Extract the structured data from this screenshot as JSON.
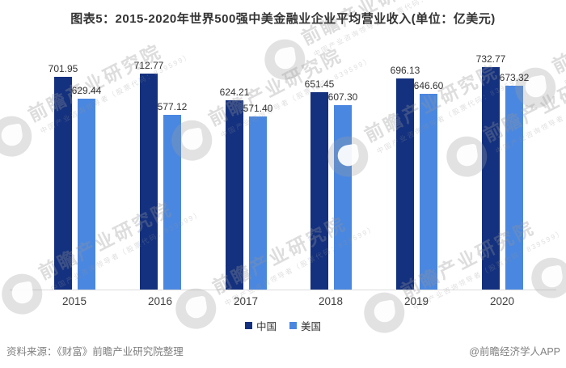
{
  "title": "图表5：2015-2020年世界500强中美金融业企业平均营业收入(单位：亿美元)",
  "chart_data": {
    "type": "bar",
    "categories": [
      "2015",
      "2016",
      "2017",
      "2018",
      "2019",
      "2020"
    ],
    "series": [
      {
        "name": "中国",
        "key": "china",
        "color": "#14317f",
        "values": [
          701.95,
          712.77,
          624.21,
          651.45,
          696.13,
          732.77
        ]
      },
      {
        "name": "美国",
        "key": "usa",
        "color": "#4a87e0",
        "values": [
          629.44,
          577.12,
          571.4,
          607.3,
          646.6,
          673.32
        ]
      }
    ],
    "unit": "亿美元",
    "ylim": [
      0,
      780
    ],
    "grid": false,
    "y_axis_visible": false,
    "value_labels": true,
    "value_label_decimals": 2,
    "legend_position": "bottom"
  },
  "footer": {
    "source": "资料来源：《财富》前瞻产业研究院整理",
    "credit": "@前瞻经济学人APP"
  },
  "watermark": {
    "text": "前瞻产业研究院",
    "subtext": "中国产业咨询领导者（股票代码：839599）"
  },
  "colors": {
    "axis_line": "#dcdcdc",
    "title_text": "#333333",
    "value_label_text": "#333333",
    "category_text": "#404040",
    "footer_text": "#808080"
  }
}
